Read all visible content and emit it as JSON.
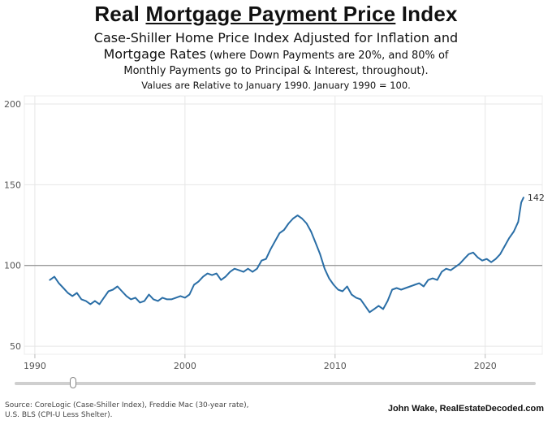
{
  "header": {
    "title_pre": "Real ",
    "title_underlined": "Mortgage Payment Price",
    "title_post": " Index",
    "subtitle_line1": "Case-Shiller Home Price Index Adjusted for Inflation and",
    "subtitle_line2_main": "Mortgage Rates",
    "subtitle_line2_small": " (where Down Payments are 20%, and 80% of",
    "subtitle_line3": "Monthly Payments go to Principal & Interest, throughout).",
    "subtitle_line4": "Values are Relative to January 1990. January 1990 = 100."
  },
  "footer": {
    "source_line1": "Source: CoreLogic (Case-Shiller Index), Freddie Mac (30-year rate),",
    "source_line2": "U.S. BLS (CPI-U Less Shelter).",
    "credit": "John Wake, RealEstateDecoded.com"
  },
  "colors": {
    "series": "#2a6ea6",
    "reference_line": "#9a9a9a",
    "grid": "#e6e6e6"
  },
  "chart_data": {
    "type": "line",
    "title": "Real Mortgage Payment Price Index",
    "xlabel": "",
    "ylabel": "",
    "xlim": [
      1989.3,
      2023.8
    ],
    "ylim": [
      45,
      205
    ],
    "x_ticks": [
      1990,
      2000,
      2010,
      2020
    ],
    "y_ticks": [
      50,
      100,
      150,
      200
    ],
    "reference_line": 100,
    "end_label": "142",
    "series": [
      {
        "name": "Real Mortgage Payment Price Index",
        "points": [
          [
            1991.0,
            91
          ],
          [
            1991.3,
            93
          ],
          [
            1991.6,
            89
          ],
          [
            1991.9,
            86
          ],
          [
            1992.2,
            83
          ],
          [
            1992.5,
            81
          ],
          [
            1992.8,
            83
          ],
          [
            1993.1,
            79
          ],
          [
            1993.4,
            78
          ],
          [
            1993.7,
            76
          ],
          [
            1994.0,
            78
          ],
          [
            1994.3,
            76
          ],
          [
            1994.6,
            80
          ],
          [
            1994.9,
            84
          ],
          [
            1995.2,
            85
          ],
          [
            1995.5,
            87
          ],
          [
            1995.8,
            84
          ],
          [
            1996.1,
            81
          ],
          [
            1996.4,
            79
          ],
          [
            1996.7,
            80
          ],
          [
            1997.0,
            77
          ],
          [
            1997.3,
            78
          ],
          [
            1997.6,
            82
          ],
          [
            1997.9,
            79
          ],
          [
            1998.2,
            78
          ],
          [
            1998.5,
            80
          ],
          [
            1998.8,
            79
          ],
          [
            1999.1,
            79
          ],
          [
            1999.4,
            80
          ],
          [
            1999.7,
            81
          ],
          [
            2000.0,
            80
          ],
          [
            2000.3,
            82
          ],
          [
            2000.6,
            88
          ],
          [
            2000.9,
            90
          ],
          [
            2001.2,
            93
          ],
          [
            2001.5,
            95
          ],
          [
            2001.8,
            94
          ],
          [
            2002.1,
            95
          ],
          [
            2002.4,
            91
          ],
          [
            2002.7,
            93
          ],
          [
            2003.0,
            96
          ],
          [
            2003.3,
            98
          ],
          [
            2003.6,
            97
          ],
          [
            2003.9,
            96
          ],
          [
            2004.2,
            98
          ],
          [
            2004.5,
            96
          ],
          [
            2004.8,
            98
          ],
          [
            2005.1,
            103
          ],
          [
            2005.4,
            104
          ],
          [
            2005.7,
            110
          ],
          [
            2006.0,
            115
          ],
          [
            2006.3,
            120
          ],
          [
            2006.6,
            122
          ],
          [
            2006.9,
            126
          ],
          [
            2007.2,
            129
          ],
          [
            2007.5,
            131
          ],
          [
            2007.8,
            129
          ],
          [
            2008.1,
            126
          ],
          [
            2008.4,
            121
          ],
          [
            2008.7,
            114
          ],
          [
            2009.0,
            107
          ],
          [
            2009.3,
            98
          ],
          [
            2009.6,
            92
          ],
          [
            2009.9,
            88
          ],
          [
            2010.2,
            85
          ],
          [
            2010.5,
            84
          ],
          [
            2010.8,
            87
          ],
          [
            2011.1,
            82
          ],
          [
            2011.4,
            80
          ],
          [
            2011.7,
            79
          ],
          [
            2012.0,
            75
          ],
          [
            2012.3,
            71
          ],
          [
            2012.6,
            73
          ],
          [
            2012.9,
            75
          ],
          [
            2013.2,
            73
          ],
          [
            2013.5,
            78
          ],
          [
            2013.8,
            85
          ],
          [
            2014.1,
            86
          ],
          [
            2014.4,
            85
          ],
          [
            2014.7,
            86
          ],
          [
            2015.0,
            87
          ],
          [
            2015.3,
            88
          ],
          [
            2015.6,
            89
          ],
          [
            2015.9,
            87
          ],
          [
            2016.2,
            91
          ],
          [
            2016.5,
            92
          ],
          [
            2016.8,
            91
          ],
          [
            2017.1,
            96
          ],
          [
            2017.4,
            98
          ],
          [
            2017.7,
            97
          ],
          [
            2018.0,
            99
          ],
          [
            2018.3,
            101
          ],
          [
            2018.6,
            104
          ],
          [
            2018.9,
            107
          ],
          [
            2019.2,
            108
          ],
          [
            2019.5,
            105
          ],
          [
            2019.8,
            103
          ],
          [
            2020.1,
            104
          ],
          [
            2020.4,
            102
          ],
          [
            2020.7,
            104
          ],
          [
            2021.0,
            107
          ],
          [
            2021.3,
            112
          ],
          [
            2021.6,
            117
          ],
          [
            2021.9,
            121
          ],
          [
            2022.2,
            127
          ],
          [
            2022.4,
            139
          ],
          [
            2022.55,
            142
          ]
        ]
      }
    ]
  }
}
